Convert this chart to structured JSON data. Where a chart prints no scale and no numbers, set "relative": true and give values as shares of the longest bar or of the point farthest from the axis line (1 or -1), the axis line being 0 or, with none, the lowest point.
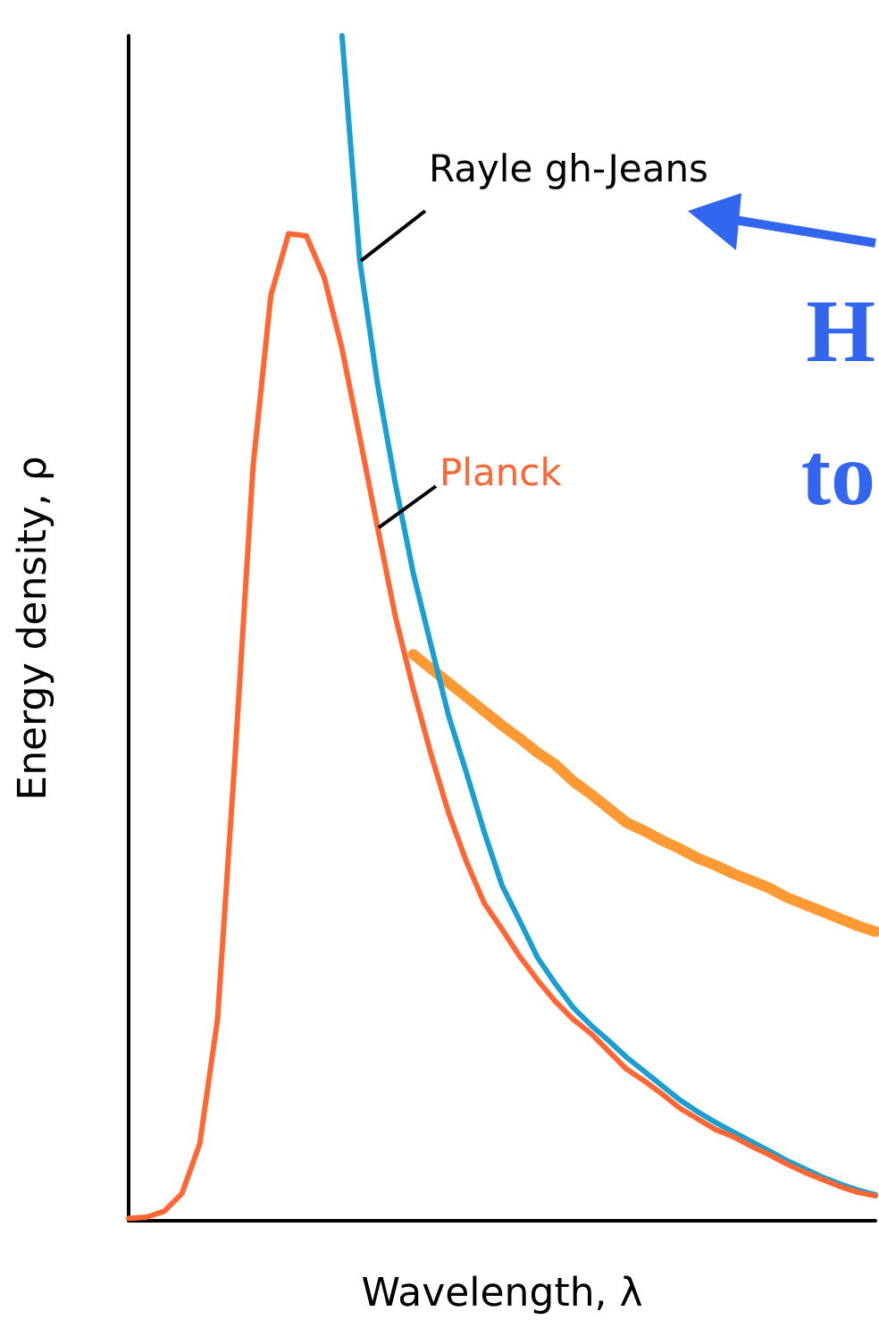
{
  "chart_data": {
    "type": "line",
    "relative": true,
    "xlabel": "Wavelength, λ",
    "ylabel": "Energy density, ρ",
    "marker": "none",
    "categories": [
      null,
      null,
      null,
      null,
      null,
      null,
      null,
      null,
      null,
      null,
      null,
      null,
      null,
      null,
      null,
      null,
      null,
      null,
      null,
      null,
      null,
      null,
      null,
      null,
      null,
      null,
      null,
      null,
      null,
      null,
      null,
      null,
      null,
      null,
      null,
      null,
      null,
      null,
      null,
      null,
      null,
      null,
      null
    ],
    "series": [
      {
        "name": "Planck",
        "color": "#ff6633",
        "values": [
          0.002,
          0.003,
          0.008,
          0.023,
          0.065,
          0.17,
          0.395,
          0.637,
          0.781,
          0.833,
          0.831,
          0.796,
          0.736,
          0.661,
          0.585,
          0.51,
          0.449,
          0.394,
          0.344,
          0.303,
          0.268,
          0.246,
          0.223,
          0.203,
          0.185,
          0.17,
          0.158,
          0.143,
          0.128,
          0.118,
          0.107,
          0.095,
          0.086,
          0.077,
          0.071,
          0.063,
          0.056,
          0.048,
          0.041,
          0.035,
          0.029,
          0.024,
          0.021
        ]
      },
      {
        "name": "Rayle gh-Jeans",
        "color": "#1a9fd0",
        "values": [
          null,
          null,
          null,
          null,
          null,
          null,
          null,
          null,
          null,
          null,
          null,
          null,
          1.0,
          0.81,
          0.706,
          0.622,
          0.547,
          0.486,
          0.426,
          0.378,
          0.328,
          0.283,
          0.253,
          0.222,
          0.2,
          0.18,
          0.165,
          0.152,
          0.138,
          0.126,
          0.114,
          0.102,
          0.092,
          0.083,
          0.075,
          0.067,
          0.059,
          0.051,
          0.044,
          0.037,
          0.031,
          0.026,
          0.022
        ]
      },
      {
        "color": "#ff9933",
        "values": [
          null,
          null,
          null,
          null,
          null,
          null,
          null,
          null,
          null,
          null,
          null,
          null,
          null,
          null,
          null,
          null,
          0.478,
          0.466,
          0.454,
          0.442,
          0.43,
          0.418,
          0.407,
          0.395,
          0.385,
          0.371,
          0.36,
          0.348,
          0.336,
          0.329,
          0.321,
          0.314,
          0.306,
          0.3,
          0.293,
          0.287,
          0.281,
          0.273,
          0.267,
          0.261,
          0.255,
          0.249,
          0.244
        ]
      }
    ],
    "annotations": [
      "H",
      "to"
    ]
  }
}
